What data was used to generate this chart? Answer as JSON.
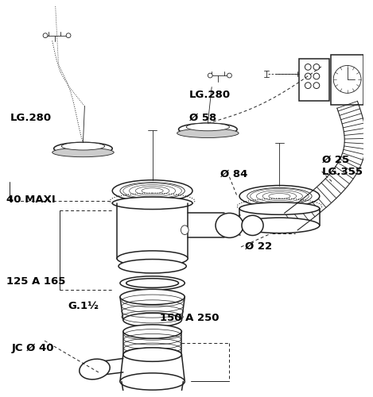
{
  "bg_color": "#ffffff",
  "line_color": "#222222",
  "text_color": "#000000",
  "lw_main": 1.1,
  "lw_thin": 0.6,
  "lw_dim": 0.7,
  "figsize": [
    4.69,
    5.0
  ],
  "dpi": 100,
  "labels": {
    "lg280_left": "LG.280",
    "lg280_center": "LG.280",
    "d58": "Ø 58",
    "d84": "Ø 84",
    "d25": "Ø 25",
    "lg355": "LG.355",
    "maxi": "40 MAXI",
    "d22": "Ø 22",
    "dim_125": "125 A 165",
    "g1": "G.1½",
    "dim_150": "150 A 250",
    "jc": "JC Ø 40"
  }
}
